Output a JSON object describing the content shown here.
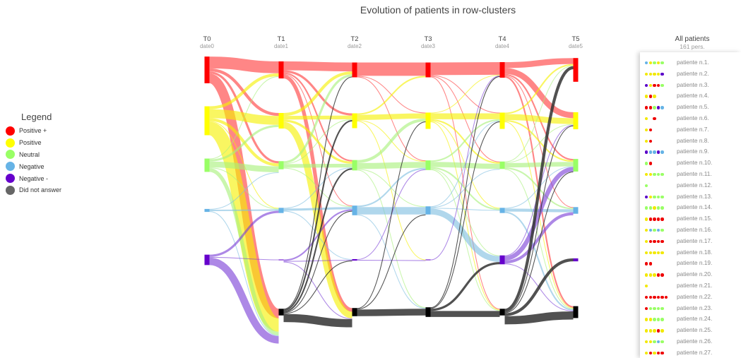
{
  "title": "Evolution of patients in row-clusters",
  "legend": {
    "title": "Legend",
    "items": [
      {
        "label": "Positive +",
        "color": "#ff0000"
      },
      {
        "label": "Positive",
        "color": "#ffff00"
      },
      {
        "label": "Neutral",
        "color": "#99ff66"
      },
      {
        "label": "Negative",
        "color": "#66b3e6"
      },
      {
        "label": "Negative -",
        "color": "#6600cc"
      },
      {
        "label": "Did not answer",
        "color": "#666666"
      }
    ]
  },
  "timepoints": [
    {
      "name": "T0",
      "date": "date0"
    },
    {
      "name": "T1",
      "date": "date1"
    },
    {
      "name": "T2",
      "date": "date2"
    },
    {
      "name": "T3",
      "date": "date3"
    },
    {
      "name": "T4",
      "date": "date4"
    },
    {
      "name": "T5",
      "date": "date5"
    }
  ],
  "all_patients": {
    "title": "All patients",
    "count": "161 pers."
  },
  "patients": [
    {
      "name": "patiente n.1.",
      "states": [
        3,
        1,
        2,
        1,
        2
      ]
    },
    {
      "name": "patiente n.2.",
      "states": [
        1,
        1,
        1,
        1,
        4
      ]
    },
    {
      "name": "patiente n.3.",
      "states": [
        4,
        1,
        0,
        0,
        2
      ]
    },
    {
      "name": "patiente n.4.",
      "states": [
        1,
        0,
        1
      ]
    },
    {
      "name": "patiente n.5.",
      "states": [
        0,
        0,
        2,
        4,
        3
      ]
    },
    {
      "name": "patiente n.6.",
      "states": [
        1,
        null,
        0
      ]
    },
    {
      "name": "patiente n.7.",
      "states": [
        1,
        0
      ]
    },
    {
      "name": "patiente n.8.",
      "states": [
        1,
        0
      ]
    },
    {
      "name": "patiente n.9.",
      "states": [
        4,
        3,
        3,
        4,
        3
      ]
    },
    {
      "name": "patiente n.10.",
      "states": [
        2,
        0
      ]
    },
    {
      "name": "patiente n.11.",
      "states": [
        1,
        1,
        2,
        2,
        2
      ]
    },
    {
      "name": "patiente n.12.",
      "states": [
        2
      ]
    },
    {
      "name": "patiente n.13.",
      "states": [
        4,
        1,
        2,
        2,
        2
      ]
    },
    {
      "name": "patiente n.14.",
      "states": [
        2,
        2,
        1,
        2,
        2
      ]
    },
    {
      "name": "patiente n.15.",
      "states": [
        1,
        0,
        0,
        0,
        0
      ]
    },
    {
      "name": "patiente n.16.",
      "states": [
        1,
        3,
        2,
        3,
        2
      ]
    },
    {
      "name": "patiente n.17.",
      "states": [
        1,
        0,
        0,
        0,
        0
      ]
    },
    {
      "name": "patiente n.18.",
      "states": [
        1,
        1,
        1,
        1,
        1
      ]
    },
    {
      "name": "patiente n.19.",
      "states": [
        0,
        0
      ]
    },
    {
      "name": "patiente n.20.",
      "states": [
        1,
        1,
        1,
        0,
        0
      ]
    },
    {
      "name": "patiente n.21.",
      "states": [
        1
      ]
    },
    {
      "name": "patiente n.22.",
      "states": [
        0,
        0,
        0,
        0,
        0,
        0
      ]
    },
    {
      "name": "patiente n.23.",
      "states": [
        0,
        2,
        2,
        2,
        2
      ]
    },
    {
      "name": "patiente n.24.",
      "states": [
        1,
        1,
        2,
        2,
        2
      ]
    },
    {
      "name": "patiente n.25.",
      "states": [
        1,
        1,
        1,
        0,
        1
      ]
    },
    {
      "name": "patiente n.26.",
      "states": [
        1,
        1,
        2,
        3,
        2
      ]
    },
    {
      "name": "patiente n.27.",
      "states": [
        1,
        0,
        1,
        0,
        0
      ]
    }
  ],
  "chart_data": {
    "type": "sankey",
    "title": "Evolution of patients in row-clusters",
    "categories": [
      "Positive +",
      "Positive",
      "Neutral",
      "Negative",
      "Negative -",
      "Did not answer"
    ],
    "stages": [
      "T0",
      "T1",
      "T2",
      "T3",
      "T4",
      "T5"
    ],
    "stage_dates": [
      "date0",
      "date1",
      "date2",
      "date3",
      "date4",
      "date5"
    ],
    "nodes": [
      [
        36,
        39,
        18,
        4,
        14,
        0
      ],
      [
        23,
        21,
        11,
        7,
        1,
        9
      ],
      [
        20,
        20,
        14,
        13,
        2,
        11
      ],
      [
        20,
        22,
        13,
        11,
        1,
        13
      ],
      [
        21,
        22,
        10,
        7,
        12,
        9
      ],
      [
        32,
        23,
        17,
        9,
        4,
        16
      ]
    ],
    "links": [
      [
        {
          "s": 0,
          "t": 0,
          "v": 16
        },
        {
          "s": 0,
          "t": 1,
          "v": 4
        },
        {
          "s": 0,
          "t": 2,
          "v": 3
        },
        {
          "s": 0,
          "t": 5,
          "v": 13
        },
        {
          "s": 1,
          "t": 0,
          "v": 4
        },
        {
          "s": 1,
          "t": 1,
          "v": 12
        },
        {
          "s": 1,
          "t": 2,
          "v": 4
        },
        {
          "s": 1,
          "t": 3,
          "v": 1
        },
        {
          "s": 1,
          "t": 5,
          "v": 18
        },
        {
          "s": 2,
          "t": 0,
          "v": 1
        },
        {
          "s": 2,
          "t": 1,
          "v": 3
        },
        {
          "s": 2,
          "t": 2,
          "v": 8
        },
        {
          "s": 2,
          "t": 3,
          "v": 1
        },
        {
          "s": 2,
          "t": 5,
          "v": 5
        },
        {
          "s": 3,
          "t": 2,
          "v": 1
        },
        {
          "s": 3,
          "t": 3,
          "v": 2
        },
        {
          "s": 3,
          "t": 5,
          "v": 1
        },
        {
          "s": 4,
          "t": 3,
          "v": 3
        },
        {
          "s": 4,
          "t": 4,
          "v": 1
        },
        {
          "s": 4,
          "t": 5,
          "v": 10
        }
      ],
      [
        {
          "s": 0,
          "t": 0,
          "v": 12
        },
        {
          "s": 0,
          "t": 1,
          "v": 3
        },
        {
          "s": 0,
          "t": 2,
          "v": 2
        },
        {
          "s": 0,
          "t": 3,
          "v": 1
        },
        {
          "s": 0,
          "t": 5,
          "v": 5
        },
        {
          "s": 1,
          "t": 0,
          "v": 4
        },
        {
          "s": 1,
          "t": 1,
          "v": 5
        },
        {
          "s": 1,
          "t": 2,
          "v": 3
        },
        {
          "s": 1,
          "t": 5,
          "v": 9
        },
        {
          "s": 2,
          "t": 0,
          "v": 3
        },
        {
          "s": 2,
          "t": 1,
          "v": 1
        },
        {
          "s": 2,
          "t": 2,
          "v": 5
        },
        {
          "s": 2,
          "t": 3,
          "v": 1
        },
        {
          "s": 3,
          "t": 2,
          "v": 1
        },
        {
          "s": 3,
          "t": 3,
          "v": 3
        },
        {
          "s": 3,
          "t": 4,
          "v": 1
        },
        {
          "s": 4,
          "t": 3,
          "v": 2
        },
        {
          "s": 4,
          "t": 4,
          "v": 1
        },
        {
          "s": 4,
          "t": 5,
          "v": 1
        },
        {
          "s": 5,
          "t": 0,
          "v": 1
        },
        {
          "s": 5,
          "t": 1,
          "v": 2
        },
        {
          "s": 5,
          "t": 2,
          "v": 2
        },
        {
          "s": 5,
          "t": 3,
          "v": 1
        },
        {
          "s": 5,
          "t": 4,
          "v": 1
        },
        {
          "s": 5,
          "t": 5,
          "v": 11
        }
      ],
      [
        {
          "s": 0,
          "t": 0,
          "v": 18
        },
        {
          "s": 0,
          "t": 1,
          "v": 1
        },
        {
          "s": 0,
          "t": 2,
          "v": 1
        },
        {
          "s": 1,
          "t": 0,
          "v": 2
        },
        {
          "s": 1,
          "t": 1,
          "v": 7
        },
        {
          "s": 1,
          "t": 2,
          "v": 1
        },
        {
          "s": 1,
          "t": 4,
          "v": 1
        },
        {
          "s": 2,
          "t": 1,
          "v": 4
        },
        {
          "s": 2,
          "t": 2,
          "v": 8
        },
        {
          "s": 2,
          "t": 3,
          "v": 1
        },
        {
          "s": 2,
          "t": 5,
          "v": 1
        },
        {
          "s": 3,
          "t": 2,
          "v": 2
        },
        {
          "s": 3,
          "t": 3,
          "v": 10
        },
        {
          "s": 3,
          "t": 5,
          "v": 1
        },
        {
          "s": 4,
          "t": 2,
          "v": 1
        },
        {
          "s": 4,
          "t": 4,
          "v": 1
        },
        {
          "s": 5,
          "t": 1,
          "v": 1
        },
        {
          "s": 5,
          "t": 3,
          "v": 1
        },
        {
          "s": 5,
          "t": 5,
          "v": 9
        }
      ],
      [
        {
          "s": 0,
          "t": 0,
          "v": 17
        },
        {
          "s": 0,
          "t": 1,
          "v": 1
        },
        {
          "s": 0,
          "t": 2,
          "v": 1
        },
        {
          "s": 0,
          "t": 5,
          "v": 1
        },
        {
          "s": 1,
          "t": 0,
          "v": 1
        },
        {
          "s": 1,
          "t": 1,
          "v": 8
        },
        {
          "s": 1,
          "t": 2,
          "v": 2
        },
        {
          "s": 1,
          "t": 3,
          "v": 1
        },
        {
          "s": 1,
          "t": 5,
          "v": 1
        },
        {
          "s": 2,
          "t": 1,
          "v": 2
        },
        {
          "s": 2,
          "t": 2,
          "v": 7
        },
        {
          "s": 2,
          "t": 3,
          "v": 2
        },
        {
          "s": 2,
          "t": 4,
          "v": 1
        },
        {
          "s": 2,
          "t": 5,
          "v": 1
        },
        {
          "s": 3,
          "t": 1,
          "v": 1
        },
        {
          "s": 3,
          "t": 2,
          "v": 1
        },
        {
          "s": 3,
          "t": 3,
          "v": 1
        },
        {
          "s": 3,
          "t": 4,
          "v": 8
        },
        {
          "s": 4,
          "t": 0,
          "v": 1
        },
        {
          "s": 5,
          "t": 0,
          "v": 1
        },
        {
          "s": 5,
          "t": 1,
          "v": 1
        },
        {
          "s": 5,
          "t": 4,
          "v": 3
        },
        {
          "s": 5,
          "t": 5,
          "v": 8
        }
      ],
      [
        {
          "s": 0,
          "t": 0,
          "v": 8
        },
        {
          "s": 0,
          "t": 1,
          "v": 8
        },
        {
          "s": 0,
          "t": 2,
          "v": 2
        },
        {
          "s": 0,
          "t": 3,
          "v": 1
        },
        {
          "s": 0,
          "t": 5,
          "v": 2
        },
        {
          "s": 1,
          "t": 0,
          "v": 2
        },
        {
          "s": 1,
          "t": 1,
          "v": 8
        },
        {
          "s": 1,
          "t": 2,
          "v": 2
        },
        {
          "s": 1,
          "t": 5,
          "v": 1
        },
        {
          "s": 2,
          "t": 0,
          "v": 1
        },
        {
          "s": 2,
          "t": 1,
          "v": 1
        },
        {
          "s": 2,
          "t": 2,
          "v": 6
        },
        {
          "s": 2,
          "t": 3,
          "v": 2
        },
        {
          "s": 2,
          "t": 5,
          "v": 1
        },
        {
          "s": 3,
          "t": 2,
          "v": 1
        },
        {
          "s": 3,
          "t": 3,
          "v": 4
        },
        {
          "s": 3,
          "t": 5,
          "v": 2
        },
        {
          "s": 4,
          "t": 1,
          "v": 1
        },
        {
          "s": 4,
          "t": 2,
          "v": 6
        },
        {
          "s": 4,
          "t": 3,
          "v": 4
        },
        {
          "s": 4,
          "t": 5,
          "v": 1
        },
        {
          "s": 5,
          "t": 0,
          "v": 4
        },
        {
          "s": 5,
          "t": 1,
          "v": 1
        },
        {
          "s": 5,
          "t": 2,
          "v": 1
        },
        {
          "s": 5,
          "t": 4,
          "v": 4
        },
        {
          "s": 5,
          "t": 5,
          "v": 11
        }
      ]
    ]
  }
}
